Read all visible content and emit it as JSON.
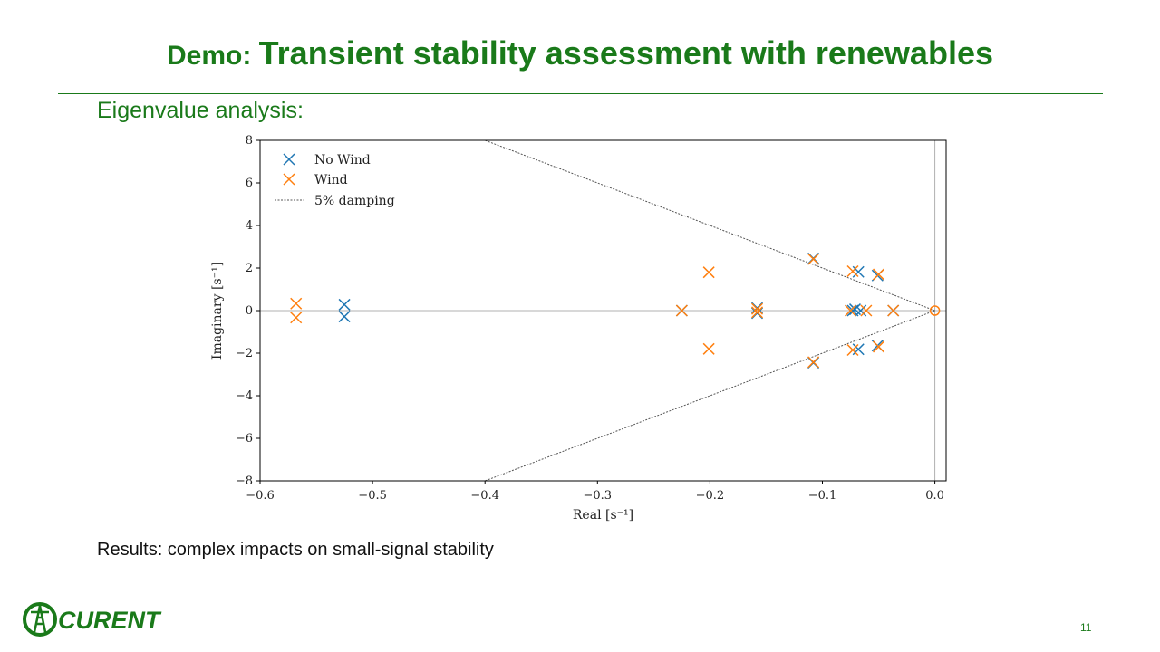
{
  "slide": {
    "title_prefix": "Demo: ",
    "title_main": "Transient stability assessment with renewables",
    "subtitle": "Eigenvalue analysis:",
    "results": "Results: complex impacts on small-signal stability",
    "page_number": "11",
    "logo_text": "CURENT"
  },
  "colors": {
    "brand_green": "#1a7a1a",
    "no_wind": "#1f77b4",
    "wind": "#ff7f0e",
    "damping": "#555555"
  },
  "chart_data": {
    "type": "scatter",
    "xlabel": "Real [s⁻¹]",
    "ylabel": "Imaginary [s⁻¹]",
    "xlim": [
      -0.6,
      0.01
    ],
    "ylim": [
      -8,
      8
    ],
    "xticks": [
      -0.6,
      -0.5,
      -0.4,
      -0.3,
      -0.2,
      -0.1,
      0.0
    ],
    "xtick_labels": [
      "−0.6",
      "−0.5",
      "−0.4",
      "−0.3",
      "−0.2",
      "−0.1",
      "0.0"
    ],
    "yticks": [
      -8,
      -6,
      -4,
      -2,
      0,
      2,
      4,
      6,
      8
    ],
    "ytick_labels": [
      "−8",
      "−6",
      "−4",
      "−2",
      "0",
      "2",
      "4",
      "6",
      "8"
    ],
    "legend_position": "top-left",
    "grid": false,
    "series": [
      {
        "name": "No Wind",
        "marker": "x",
        "points": [
          [
            -0.525,
            0.28
          ],
          [
            -0.525,
            -0.28
          ],
          [
            -0.225,
            0.0
          ],
          [
            -0.158,
            0.12
          ],
          [
            -0.158,
            -0.12
          ],
          [
            -0.108,
            2.45
          ],
          [
            -0.108,
            -2.45
          ],
          [
            -0.073,
            0.0
          ],
          [
            -0.071,
            0.06
          ],
          [
            -0.066,
            0.0
          ],
          [
            -0.068,
            1.82
          ],
          [
            -0.068,
            -1.82
          ],
          [
            -0.051,
            1.65
          ],
          [
            -0.051,
            -1.65
          ],
          [
            -0.037,
            0.0
          ]
        ]
      },
      {
        "name": "Wind",
        "marker": "x",
        "points": [
          [
            -0.568,
            0.33
          ],
          [
            -0.568,
            -0.33
          ],
          [
            -0.225,
            0.0
          ],
          [
            -0.201,
            1.8
          ],
          [
            -0.201,
            -1.8
          ],
          [
            -0.158,
            0.08
          ],
          [
            -0.158,
            -0.08
          ],
          [
            -0.108,
            2.42
          ],
          [
            -0.108,
            -2.42
          ],
          [
            -0.073,
            1.85
          ],
          [
            -0.073,
            -1.85
          ],
          [
            -0.075,
            0.0
          ],
          [
            -0.061,
            0.0
          ],
          [
            -0.05,
            1.7
          ],
          [
            -0.05,
            -1.7
          ],
          [
            -0.037,
            0.0
          ]
        ]
      },
      {
        "name": "5% damping",
        "style": "dotted-line",
        "lines": [
          [
            [
              0.0,
              0.0
            ],
            [
              -0.4,
              8.0
            ]
          ],
          [
            [
              0.0,
              0.0
            ],
            [
              -0.4,
              -8.0
            ]
          ]
        ]
      }
    ],
    "reference_lines": {
      "x": 0.0,
      "y": 0.0
    },
    "annotations": [
      {
        "shape": "circle",
        "x": 0.0,
        "y": 0.0,
        "color": "wind"
      }
    ]
  }
}
